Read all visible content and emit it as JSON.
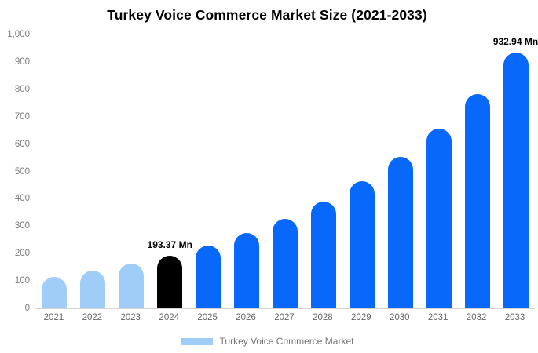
{
  "chart_data": {
    "type": "bar",
    "title": "Turkey Voice Commerce Market Size (2021-2033)",
    "unit": "Mn",
    "categories": [
      "2021",
      "2022",
      "2023",
      "2024",
      "2025",
      "2026",
      "2027",
      "2028",
      "2029",
      "2030",
      "2031",
      "2032",
      "2033"
    ],
    "series": [
      {
        "name": "Turkey Voice Commerce Market",
        "values": [
          115,
          137,
          162,
          193.37,
          230,
          274,
          327,
          389,
          463,
          552,
          657,
          783,
          932.94
        ]
      }
    ],
    "bar_colors": [
      "#a0cdf8",
      "#a0cdf8",
      "#a0cdf8",
      "#000000",
      "#0768fb",
      "#0768fb",
      "#0768fb",
      "#0768fb",
      "#0768fb",
      "#0768fb",
      "#0768fb",
      "#0768fb",
      "#0768fb"
    ],
    "annotations": [
      {
        "category": "2024",
        "text": "193.37 Mn"
      },
      {
        "category": "2033",
        "text": "932.94 Mn"
      }
    ],
    "xlabel": "",
    "ylabel": "",
    "ylim": [
      0,
      1000
    ],
    "yticks": [
      {
        "value": 0,
        "label": "0"
      },
      {
        "value": 100,
        "label": "100"
      },
      {
        "value": 200,
        "label": "200"
      },
      {
        "value": 300,
        "label": "300"
      },
      {
        "value": 400,
        "label": "400"
      },
      {
        "value": 500,
        "label": "500"
      },
      {
        "value": 600,
        "label": "600"
      },
      {
        "value": 700,
        "label": "700"
      },
      {
        "value": 800,
        "label": "800"
      },
      {
        "value": 900,
        "label": "900"
      },
      {
        "value": 1000,
        "label": "1,000"
      }
    ],
    "grid": false,
    "legend": {
      "position": "bottom",
      "items": [
        {
          "label": "Turkey Voice Commerce Market",
          "color": "#a0cdf8"
        }
      ]
    },
    "colors": {
      "historical_bar": "#a0cdf8",
      "base_year_bar": "#000000",
      "forecast_bar": "#0768fb",
      "axis_line": "#d6d6d6"
    }
  }
}
